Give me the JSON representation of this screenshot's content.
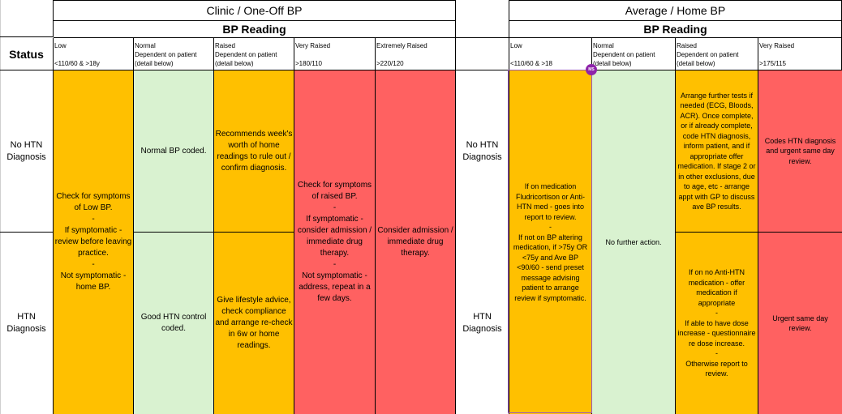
{
  "left_table": {
    "title": "Clinic / One-Off BP",
    "subtitle": "BP Reading",
    "status_label": "Status",
    "columns": [
      {
        "l1": "Low",
        "l2": "",
        "l3": "<110/60 & >18y"
      },
      {
        "l1": "Normal",
        "l2": "Dependent on patient",
        "l3": "(detail below)"
      },
      {
        "l1": "Raised",
        "l2": "Dependent on patient",
        "l3": "(detail below)"
      },
      {
        "l1": "Very Raised",
        "l2": "",
        "l3": ">180/110"
      },
      {
        "l1": "Extremely Raised",
        "l2": "",
        "l3": ">220/120"
      }
    ],
    "rows": [
      {
        "status": "No HTN\nDiagnosis"
      },
      {
        "status": "HTN\nDiagnosis"
      }
    ],
    "low_text": "Check for symptoms of Low BP.\n-\nIf symptomatic - review before leaving practice.\n-\nNot symptomatic - home BP.",
    "normal_no_htn": "Normal BP coded.",
    "normal_htn": "Good HTN control coded.",
    "raised_no_htn": "Recommends week's worth of home readings to rule out / confirm diagnosis.",
    "raised_htn": "Give lifestyle advice, check compliance and arrange re-check in 6w or home readings.",
    "very_raised_text": "Check for symptoms of raised BP.\n-\nIf symptomatic - consider admission / immediate drug therapy.\n-\nNot symptomatic - address, repeat in a few days.",
    "extremely_raised_text": "Consider admission / immediate drug therapy."
  },
  "right_table": {
    "title": "Average / Home BP",
    "subtitle": "BP Reading",
    "columns": [
      {
        "l1": "Low",
        "l2": "",
        "l3": "<110/60 & >18"
      },
      {
        "l1": "Normal",
        "l2": "Dependent on patient",
        "l3": "(detail below)"
      },
      {
        "l1": "Raised",
        "l2": "Dependent on patient",
        "l3": "(detail below)"
      },
      {
        "l1": "Very Raised",
        "l2": "",
        "l3": ">175/115"
      }
    ],
    "rows": [
      {
        "status": "No HTN\nDiagnosis"
      },
      {
        "status": "HTN\nDiagnosis"
      }
    ],
    "low_text": "If on medication Fludricortison or Anti-HTN med - goes into report to review.\n-\nIf not on BP altering medication, if >75y OR <75y and Ave BP <90/60 - send preset message advising patient to arrange review if symptomatic.",
    "normal_text": "No further action.",
    "raised_no_htn": "Arrange further tests if needed (ECG, Bloods, ACR). Once complete, or if already complete, code HTN diagnosis, inform patient, and if appropriate offer medication. If stage 2 or in other exclusions, due to age, etc - arrange appt with GP to discuss ave BP results.",
    "raised_htn": "If on no Anti-HTN medication - offer medication if appropriate\n-\nIf able to have dose increase - questionnaire re dose increase.\n-\nOtherwise report to review.",
    "very_raised_no_htn": "Codes HTN diagnosis and urgent same day review.",
    "very_raised_htn": "Urgent same day review."
  },
  "badge_text": "MS",
  "colors": {
    "low": "#ffc000",
    "normal": "#d9f2d0",
    "raised": "#ffc000",
    "very_raised": "#ff6161",
    "extremely_raised": "#ff6161"
  }
}
